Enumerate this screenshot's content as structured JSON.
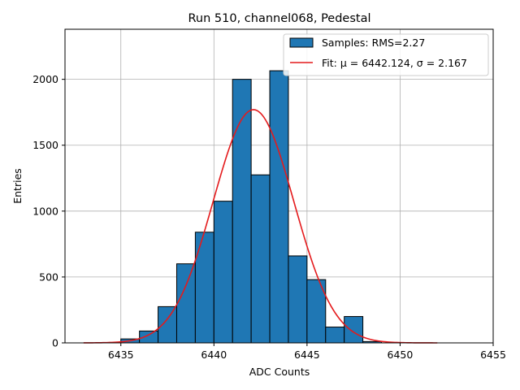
{
  "chart_data": {
    "type": "bar",
    "title": "Run 510, channel068, Pedestal",
    "xlabel": "ADC Counts",
    "ylabel": "Entries",
    "xlim": [
      6432,
      6455
    ],
    "ylim": [
      0,
      2380
    ],
    "xticks": [
      6435,
      6440,
      6445,
      6450,
      6455
    ],
    "yticks": [
      0,
      500,
      1000,
      1500,
      2000
    ],
    "grid": true,
    "legend_position": "top-right",
    "series": [
      {
        "name": "Samples: RMS=2.27",
        "kind": "histogram",
        "bins": [
          {
            "x0": 6435,
            "x1": 6436,
            "value": 30
          },
          {
            "x0": 6436,
            "x1": 6437,
            "value": 90
          },
          {
            "x0": 6437,
            "x1": 6438,
            "value": 275
          },
          {
            "x0": 6438,
            "x1": 6439,
            "value": 600
          },
          {
            "x0": 6439,
            "x1": 6440,
            "value": 840
          },
          {
            "x0": 6440,
            "x1": 6441,
            "value": 1075
          },
          {
            "x0": 6441,
            "x1": 6442,
            "value": 2000
          },
          {
            "x0": 6442,
            "x1": 6443,
            "value": 1275
          },
          {
            "x0": 6443,
            "x1": 6444,
            "value": 2065
          },
          {
            "x0": 6444,
            "x1": 6445,
            "value": 660
          },
          {
            "x0": 6445,
            "x1": 6446,
            "value": 480
          },
          {
            "x0": 6446,
            "x1": 6447,
            "value": 120
          },
          {
            "x0": 6447,
            "x1": 6448,
            "value": 200
          },
          {
            "x0": 6448,
            "x1": 6449,
            "value": 10
          }
        ]
      },
      {
        "name": "Fit: μ = 6442.124, σ = 2.167",
        "kind": "gaussian",
        "mu": 6442.124,
        "sigma": 2.167,
        "amplitude": 1770,
        "x_range": [
          6433,
          6452
        ]
      }
    ],
    "colors": {
      "bar_fill": "#1f77b4",
      "bar_edge": "#000000",
      "fit_line": "#e41a1c",
      "grid": "#b0b0b0"
    }
  }
}
